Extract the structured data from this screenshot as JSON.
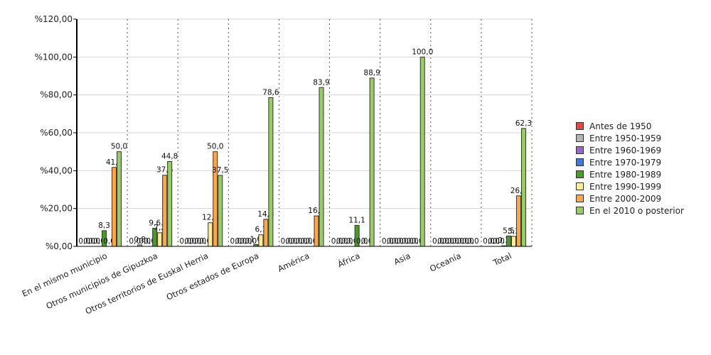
{
  "chart_data": {
    "type": "bar",
    "categories": [
      "En el mismo municipio",
      "Otros municipios de Gipuzkoa",
      "Otros territorios de Euskal Herria",
      "Otros estados de Europa",
      "América",
      "África",
      "Asia",
      "Oceanía",
      "Total"
    ],
    "series": [
      {
        "name": "Antes de 1950",
        "color": "#e8443a",
        "values": [
          0,
          0,
          0,
          0,
          0,
          0,
          0,
          0,
          0
        ]
      },
      {
        "name": "Entre 1950-1959",
        "color": "#b4b4b4",
        "values": [
          0,
          0.8,
          0,
          0,
          0,
          0,
          0,
          0,
          0
        ]
      },
      {
        "name": "Entre 1960-1969",
        "color": "#9966cc",
        "values": [
          0,
          0,
          0,
          0,
          0,
          0,
          0,
          0,
          0
        ]
      },
      {
        "name": "Entre 1970-1979",
        "color": "#4477dd",
        "values": [
          0,
          0,
          0,
          0,
          0,
          0,
          0,
          0,
          0.3
        ]
      },
      {
        "name": "Entre 1980-1989",
        "color": "#4c9a2a",
        "values": [
          8.3,
          9.6,
          0,
          1.0,
          0,
          11.1,
          0,
          0,
          5.5
        ]
      },
      {
        "name": "Entre 1990-1999",
        "color": "#ffee99",
        "values": [
          0,
          7.2,
          12.5,
          6.1,
          0,
          0,
          0,
          0,
          5.3
        ]
      },
      {
        "name": "Entre 2000-2009",
        "color": "#ffa64d",
        "values": [
          41.7,
          37.6,
          50.0,
          14.3,
          16.1,
          0,
          0,
          0,
          26.7
        ]
      },
      {
        "name": "En el 2010 o posterior",
        "color": "#99cc66",
        "values": [
          50.0,
          44.8,
          37.5,
          78.6,
          83.9,
          88.9,
          100.0,
          0,
          62.3
        ]
      }
    ],
    "data_labels": [
      [
        "0,0",
        "0,0",
        "0,0",
        "0,0",
        "8,3",
        "0,0",
        "41,7",
        "50,0"
      ],
      [
        "0,0",
        "0,8",
        "0,0",
        "0,0",
        "9,6",
        "7,2",
        "37,6",
        "44,8"
      ],
      [
        "0,0",
        "0,0",
        "0,0",
        "0,0",
        "0,0",
        "12,5",
        "50,0",
        "37,5"
      ],
      [
        "0,0",
        "0,0",
        "0,0",
        "0,0",
        "1,0",
        "6,1",
        "14,3",
        "78,6"
      ],
      [
        "0,0",
        "0,0",
        "0,0",
        "0,0",
        "0,0",
        "0,0",
        "16,1",
        "83,9"
      ],
      [
        "0,0",
        "0,0",
        "0,0",
        "0,0",
        "11,1",
        "0,0",
        "0,0",
        "88,9"
      ],
      [
        "0,0",
        "0,0",
        "0,0",
        "0,0",
        "0,0",
        "0,0",
        "0,0",
        "100,0"
      ],
      [
        "0,0",
        "0,0",
        "0,0",
        "0,0",
        "0,0",
        "0,0",
        "0,0",
        "0,0"
      ],
      [
        "0,0",
        "0,0",
        "0,0",
        "0,3",
        "5,5",
        "5,3",
        "26,7",
        "62,3"
      ]
    ],
    "y_ticks": [
      "%0,00",
      "%20,00",
      "%40,00",
      "%60,00",
      "%80,00",
      "%100,00",
      "%120,00"
    ],
    "ylim": [
      0,
      120
    ],
    "grid": true,
    "legend_position": "right"
  }
}
